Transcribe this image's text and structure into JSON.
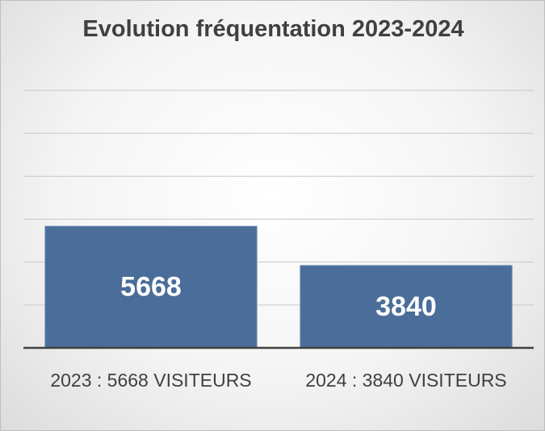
{
  "chart_data": {
    "type": "bar",
    "title": "Evolution fréquentation 2023-2024",
    "categories": [
      "2023 : 5668 VISITEURS",
      "2024 : 3840 VISITEURS"
    ],
    "values": [
      5668,
      3840
    ],
    "color": "#4a6d99",
    "ylim": [
      0,
      12000
    ],
    "yticks": [
      0,
      2000,
      4000,
      6000,
      8000,
      10000,
      12000
    ],
    "grid": true
  }
}
